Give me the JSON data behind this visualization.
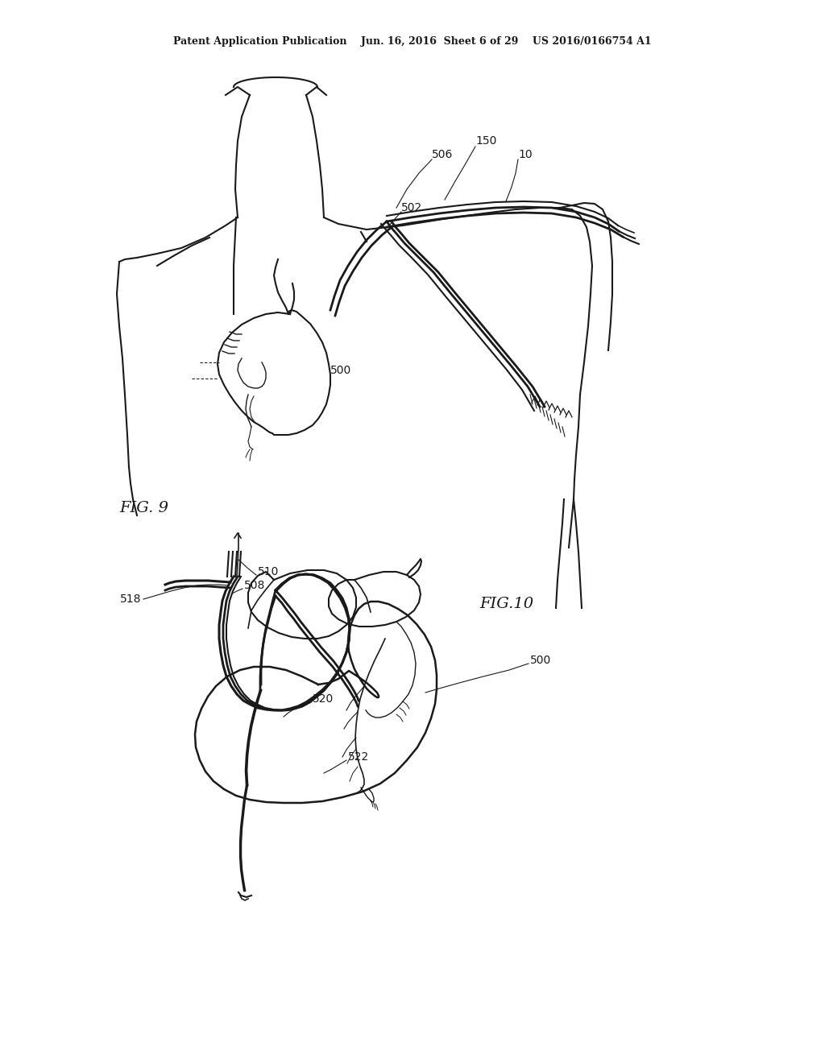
{
  "bg_color": "#ffffff",
  "line_color": "#1a1a1a",
  "fig_width": 10.24,
  "fig_height": 13.2,
  "header_text": "Patent Application Publication    Jun. 16, 2016  Sheet 6 of 29    US 2016/0166754 A1",
  "fig9_label": "FIG. 9",
  "fig10_label": "FIG.10"
}
